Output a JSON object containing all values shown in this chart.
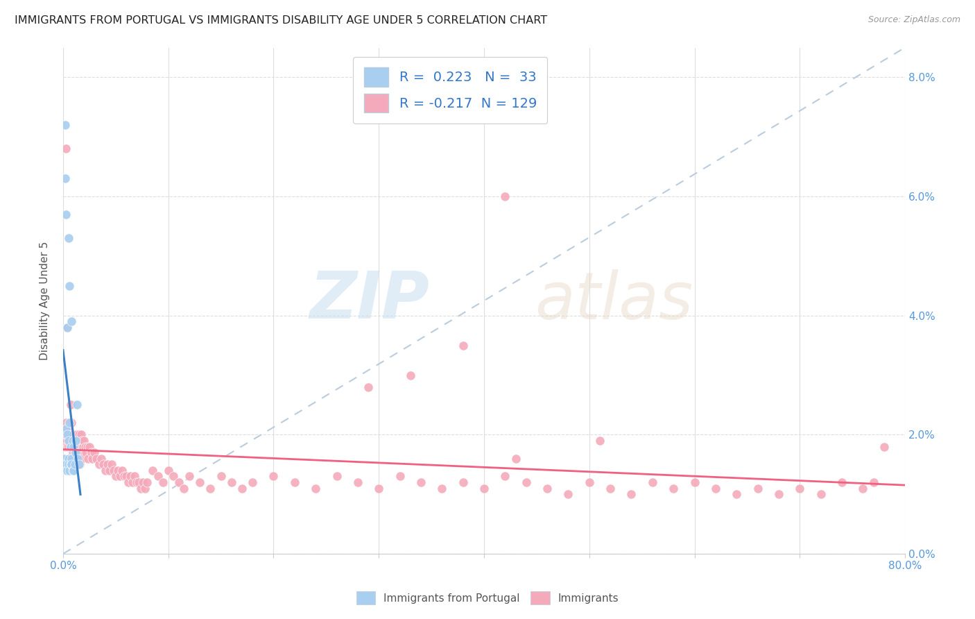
{
  "title": "IMMIGRANTS FROM PORTUGAL VS IMMIGRANTS DISABILITY AGE UNDER 5 CORRELATION CHART",
  "source": "Source: ZipAtlas.com",
  "ylabel": "Disability Age Under 5",
  "legend_blue_label": "Immigrants from Portugal",
  "legend_pink_label": "Immigrants",
  "blue_R": "0.223",
  "blue_N": "33",
  "pink_R": "-0.217",
  "pink_N": "129",
  "blue_color": "#A8CEF0",
  "pink_color": "#F4AABB",
  "blue_line_color": "#3B7FC4",
  "pink_line_color": "#F06080",
  "dashed_line_color": "#BBCCDD",
  "grid_color": "#DDDDDD",
  "title_color": "#222222",
  "right_axis_color": "#5599DD",
  "legend_label_color": "#3377CC",
  "watermark_zip": "ZIP",
  "watermark_atlas": "atlas",
  "blue_x": [
    0.001,
    0.001,
    0.002,
    0.002,
    0.003,
    0.003,
    0.003,
    0.003,
    0.004,
    0.004,
    0.004,
    0.005,
    0.005,
    0.005,
    0.005,
    0.006,
    0.006,
    0.006,
    0.007,
    0.007,
    0.008,
    0.008,
    0.008,
    0.009,
    0.009,
    0.01,
    0.01,
    0.011,
    0.012,
    0.012,
    0.013,
    0.014,
    0.015
  ],
  "blue_y": [
    0.016,
    0.015,
    0.072,
    0.063,
    0.057,
    0.021,
    0.015,
    0.014,
    0.038,
    0.02,
    0.014,
    0.053,
    0.019,
    0.016,
    0.015,
    0.045,
    0.022,
    0.014,
    0.015,
    0.018,
    0.039,
    0.016,
    0.015,
    0.019,
    0.014,
    0.018,
    0.014,
    0.015,
    0.019,
    0.017,
    0.025,
    0.016,
    0.015
  ],
  "pink_x": [
    0.001,
    0.001,
    0.002,
    0.002,
    0.002,
    0.003,
    0.003,
    0.003,
    0.004,
    0.004,
    0.004,
    0.005,
    0.005,
    0.005,
    0.006,
    0.006,
    0.006,
    0.007,
    0.007,
    0.008,
    0.008,
    0.008,
    0.009,
    0.009,
    0.01,
    0.01,
    0.01,
    0.011,
    0.011,
    0.012,
    0.012,
    0.013,
    0.013,
    0.014,
    0.014,
    0.015,
    0.015,
    0.016,
    0.016,
    0.017,
    0.017,
    0.018,
    0.018,
    0.019,
    0.02,
    0.021,
    0.022,
    0.023,
    0.024,
    0.025,
    0.027,
    0.028,
    0.03,
    0.032,
    0.034,
    0.036,
    0.038,
    0.04,
    0.042,
    0.044,
    0.046,
    0.048,
    0.05,
    0.052,
    0.054,
    0.056,
    0.058,
    0.06,
    0.062,
    0.064,
    0.066,
    0.068,
    0.07,
    0.072,
    0.074,
    0.076,
    0.078,
    0.08,
    0.085,
    0.09,
    0.095,
    0.1,
    0.105,
    0.11,
    0.115,
    0.12,
    0.13,
    0.14,
    0.15,
    0.16,
    0.17,
    0.18,
    0.2,
    0.22,
    0.24,
    0.26,
    0.28,
    0.3,
    0.32,
    0.34,
    0.36,
    0.38,
    0.4,
    0.42,
    0.44,
    0.46,
    0.48,
    0.5,
    0.52,
    0.54,
    0.56,
    0.58,
    0.6,
    0.62,
    0.64,
    0.66,
    0.68,
    0.7,
    0.72,
    0.74,
    0.76,
    0.77,
    0.78,
    0.42,
    0.38,
    0.33,
    0.29,
    0.51,
    0.43
  ],
  "pink_y": [
    0.021,
    0.019,
    0.02,
    0.018,
    0.016,
    0.068,
    0.022,
    0.02,
    0.038,
    0.021,
    0.018,
    0.02,
    0.018,
    0.016,
    0.022,
    0.019,
    0.016,
    0.025,
    0.018,
    0.022,
    0.019,
    0.016,
    0.02,
    0.017,
    0.02,
    0.018,
    0.015,
    0.019,
    0.017,
    0.02,
    0.018,
    0.02,
    0.017,
    0.019,
    0.016,
    0.02,
    0.017,
    0.018,
    0.015,
    0.02,
    0.017,
    0.019,
    0.016,
    0.018,
    0.019,
    0.018,
    0.017,
    0.018,
    0.016,
    0.018,
    0.017,
    0.016,
    0.017,
    0.016,
    0.015,
    0.016,
    0.015,
    0.014,
    0.015,
    0.014,
    0.015,
    0.014,
    0.013,
    0.014,
    0.013,
    0.014,
    0.013,
    0.013,
    0.012,
    0.013,
    0.012,
    0.013,
    0.012,
    0.012,
    0.011,
    0.012,
    0.011,
    0.012,
    0.014,
    0.013,
    0.012,
    0.014,
    0.013,
    0.012,
    0.011,
    0.013,
    0.012,
    0.011,
    0.013,
    0.012,
    0.011,
    0.012,
    0.013,
    0.012,
    0.011,
    0.013,
    0.012,
    0.011,
    0.013,
    0.012,
    0.011,
    0.012,
    0.011,
    0.013,
    0.012,
    0.011,
    0.01,
    0.012,
    0.011,
    0.01,
    0.012,
    0.011,
    0.012,
    0.011,
    0.01,
    0.011,
    0.01,
    0.011,
    0.01,
    0.012,
    0.011,
    0.012,
    0.018,
    0.06,
    0.035,
    0.03,
    0.028,
    0.019,
    0.016
  ]
}
